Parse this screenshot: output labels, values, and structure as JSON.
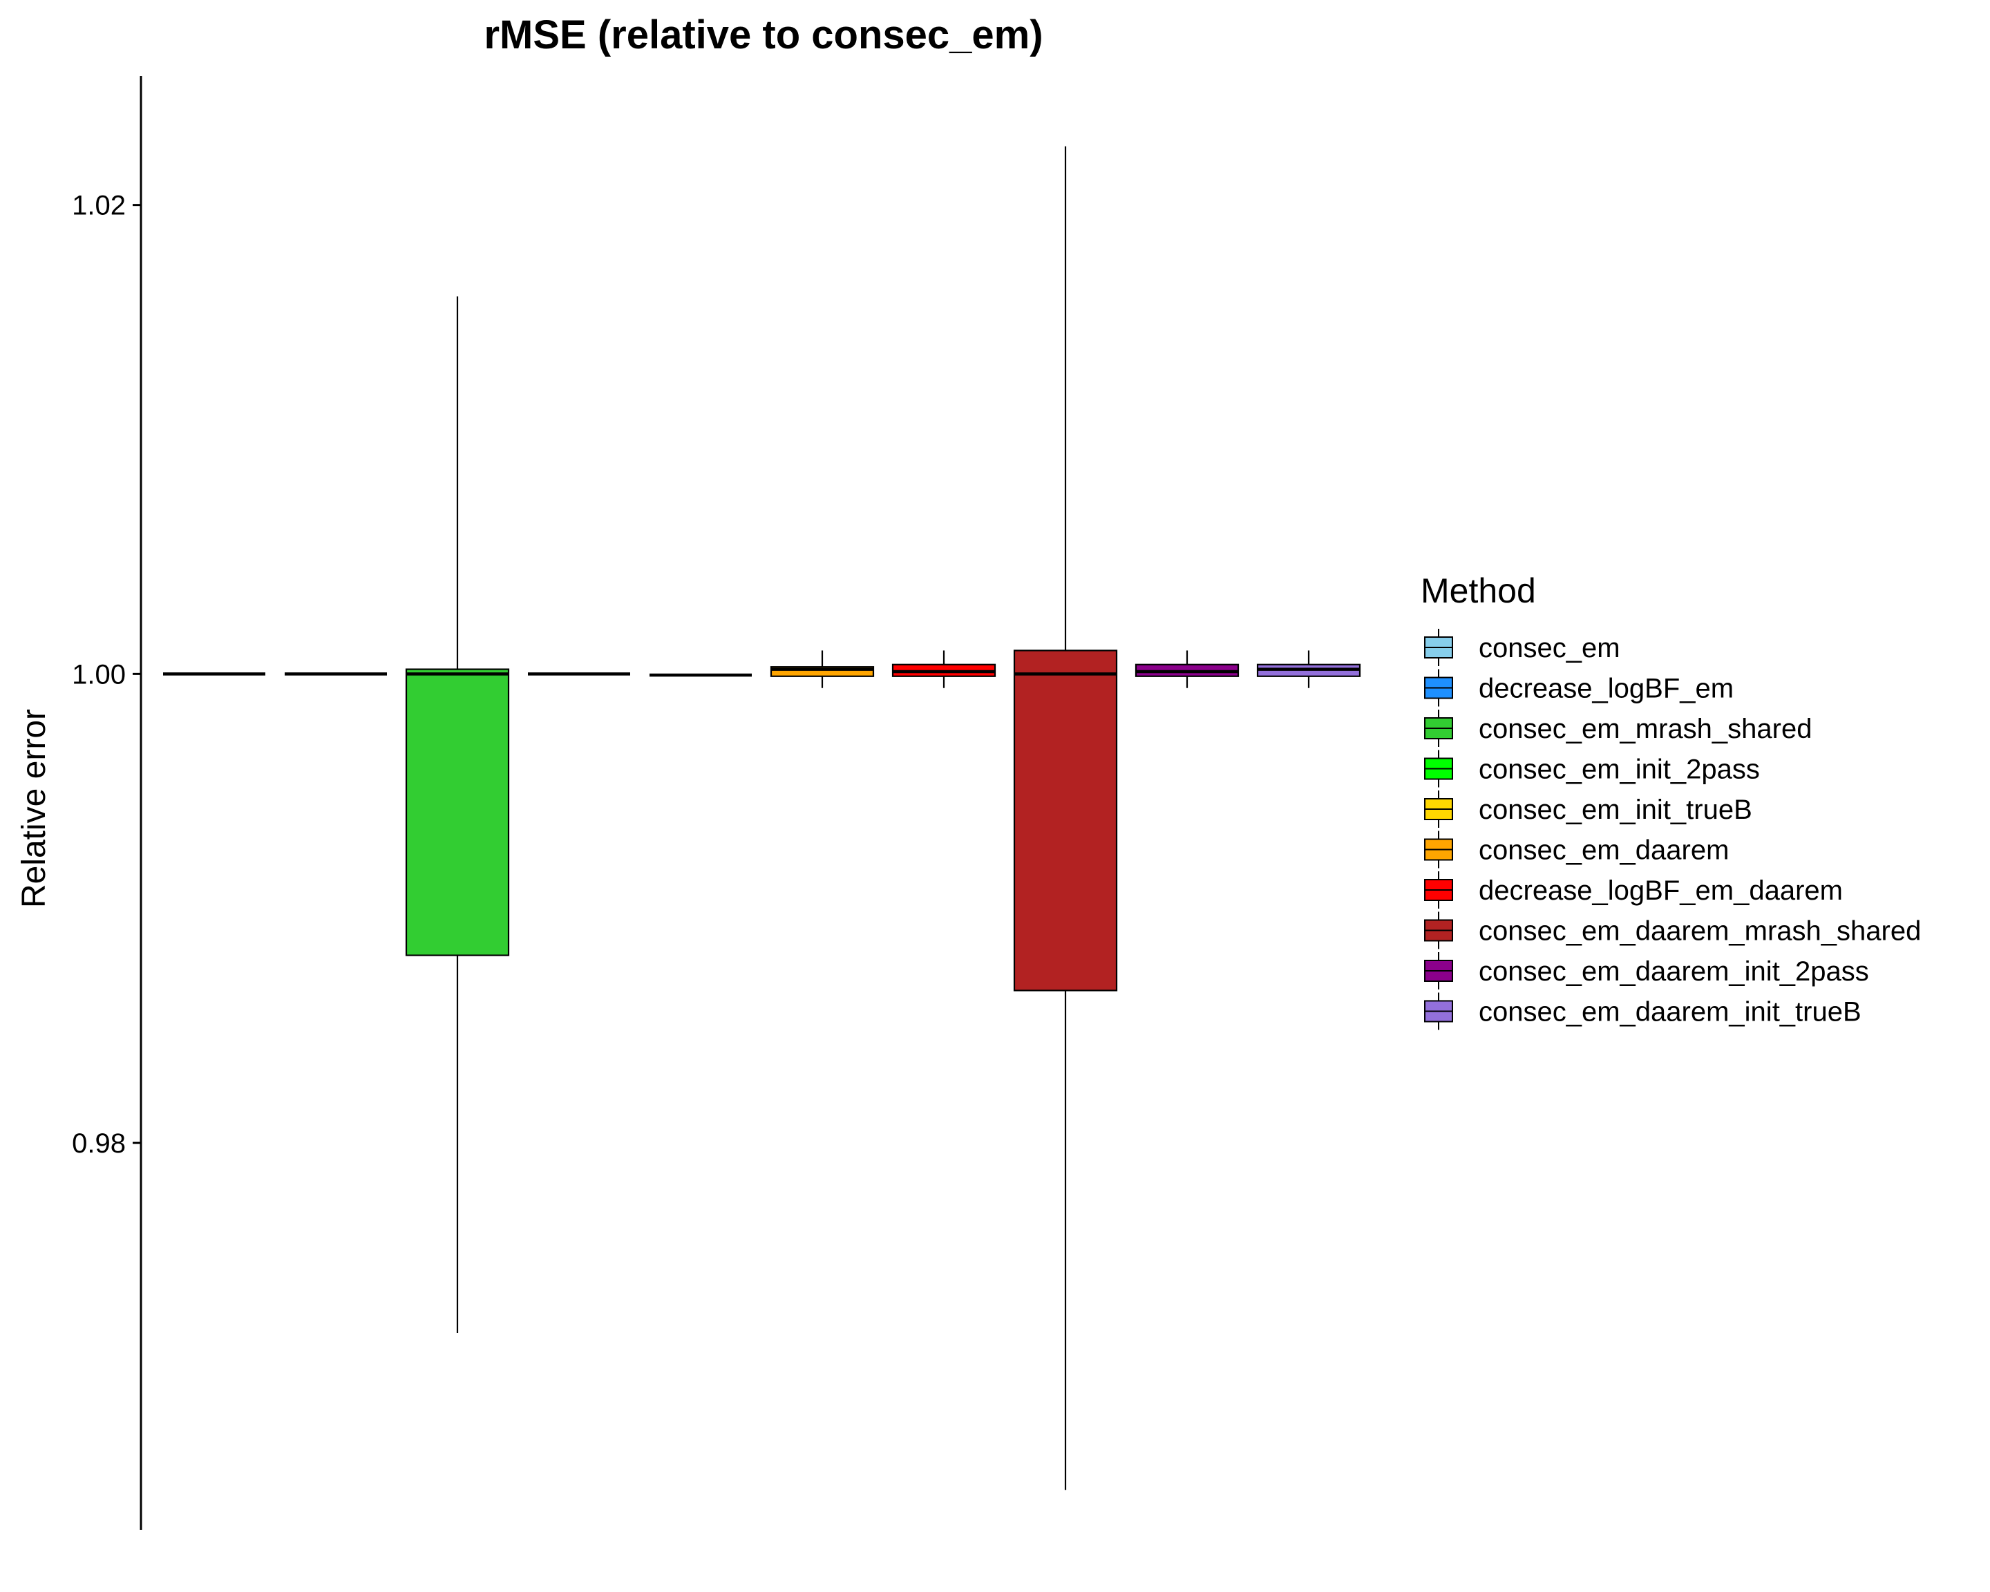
{
  "chart_data": {
    "type": "boxplot",
    "title": "rMSE (relative to consec_em)",
    "xlabel": "",
    "ylabel": "Relative error",
    "ylim": [
      0.9635,
      1.0255
    ],
    "yticks": [
      "0.98",
      "1.00",
      "1.02"
    ],
    "ytick_values": [
      0.98,
      1.0,
      1.02
    ],
    "grid": false,
    "legend_title": "Method",
    "legend_position": "right",
    "series": [
      {
        "name": "consec_em",
        "color": "#87CEEB",
        "min": 1.0,
        "q1": 1.0,
        "median": 1.0,
        "q3": 1.0,
        "max": 1.0
      },
      {
        "name": "decrease_logBF_em",
        "color": "#1E90FF",
        "min": 1.0,
        "q1": 1.0,
        "median": 1.0,
        "q3": 1.0,
        "max": 1.0
      },
      {
        "name": "consec_em_mrash_shared",
        "color": "#32CD32",
        "min": 0.9719,
        "q1": 0.988,
        "median": 1.0,
        "q3": 1.0002,
        "max": 1.0161
      },
      {
        "name": "consec_em_init_2pass",
        "color": "#00FF00",
        "min": 1.0,
        "q1": 1.0,
        "median": 1.0,
        "q3": 1.0,
        "max": 1.0
      },
      {
        "name": "consec_em_init_trueB",
        "color": "#FFD700",
        "min": 0.99995,
        "q1": 0.99995,
        "median": 0.99995,
        "q3": 0.99995,
        "max": 0.99995
      },
      {
        "name": "consec_em_daarem",
        "color": "#FFA500",
        "min": 0.9994,
        "q1": 0.9999,
        "median": 1.0002,
        "q3": 1.0003,
        "max": 1.001
      },
      {
        "name": "decrease_logBF_em_daarem",
        "color": "#FF0000",
        "min": 0.9994,
        "q1": 0.9999,
        "median": 1.0001,
        "q3": 1.0004,
        "max": 1.001
      },
      {
        "name": "consec_em_daarem_mrash_shared",
        "color": "#B22222",
        "min": 0.9652,
        "q1": 0.9865,
        "median": 1.0,
        "q3": 1.001,
        "max": 1.0225
      },
      {
        "name": "consec_em_daarem_init_2pass",
        "color": "#8B008B",
        "min": 0.9994,
        "q1": 0.9999,
        "median": 1.0001,
        "q3": 1.0004,
        "max": 1.001
      },
      {
        "name": "consec_em_daarem_init_trueB",
        "color": "#9370DB",
        "min": 0.9994,
        "q1": 0.9999,
        "median": 1.0002,
        "q3": 1.0004,
        "max": 1.001
      }
    ]
  }
}
